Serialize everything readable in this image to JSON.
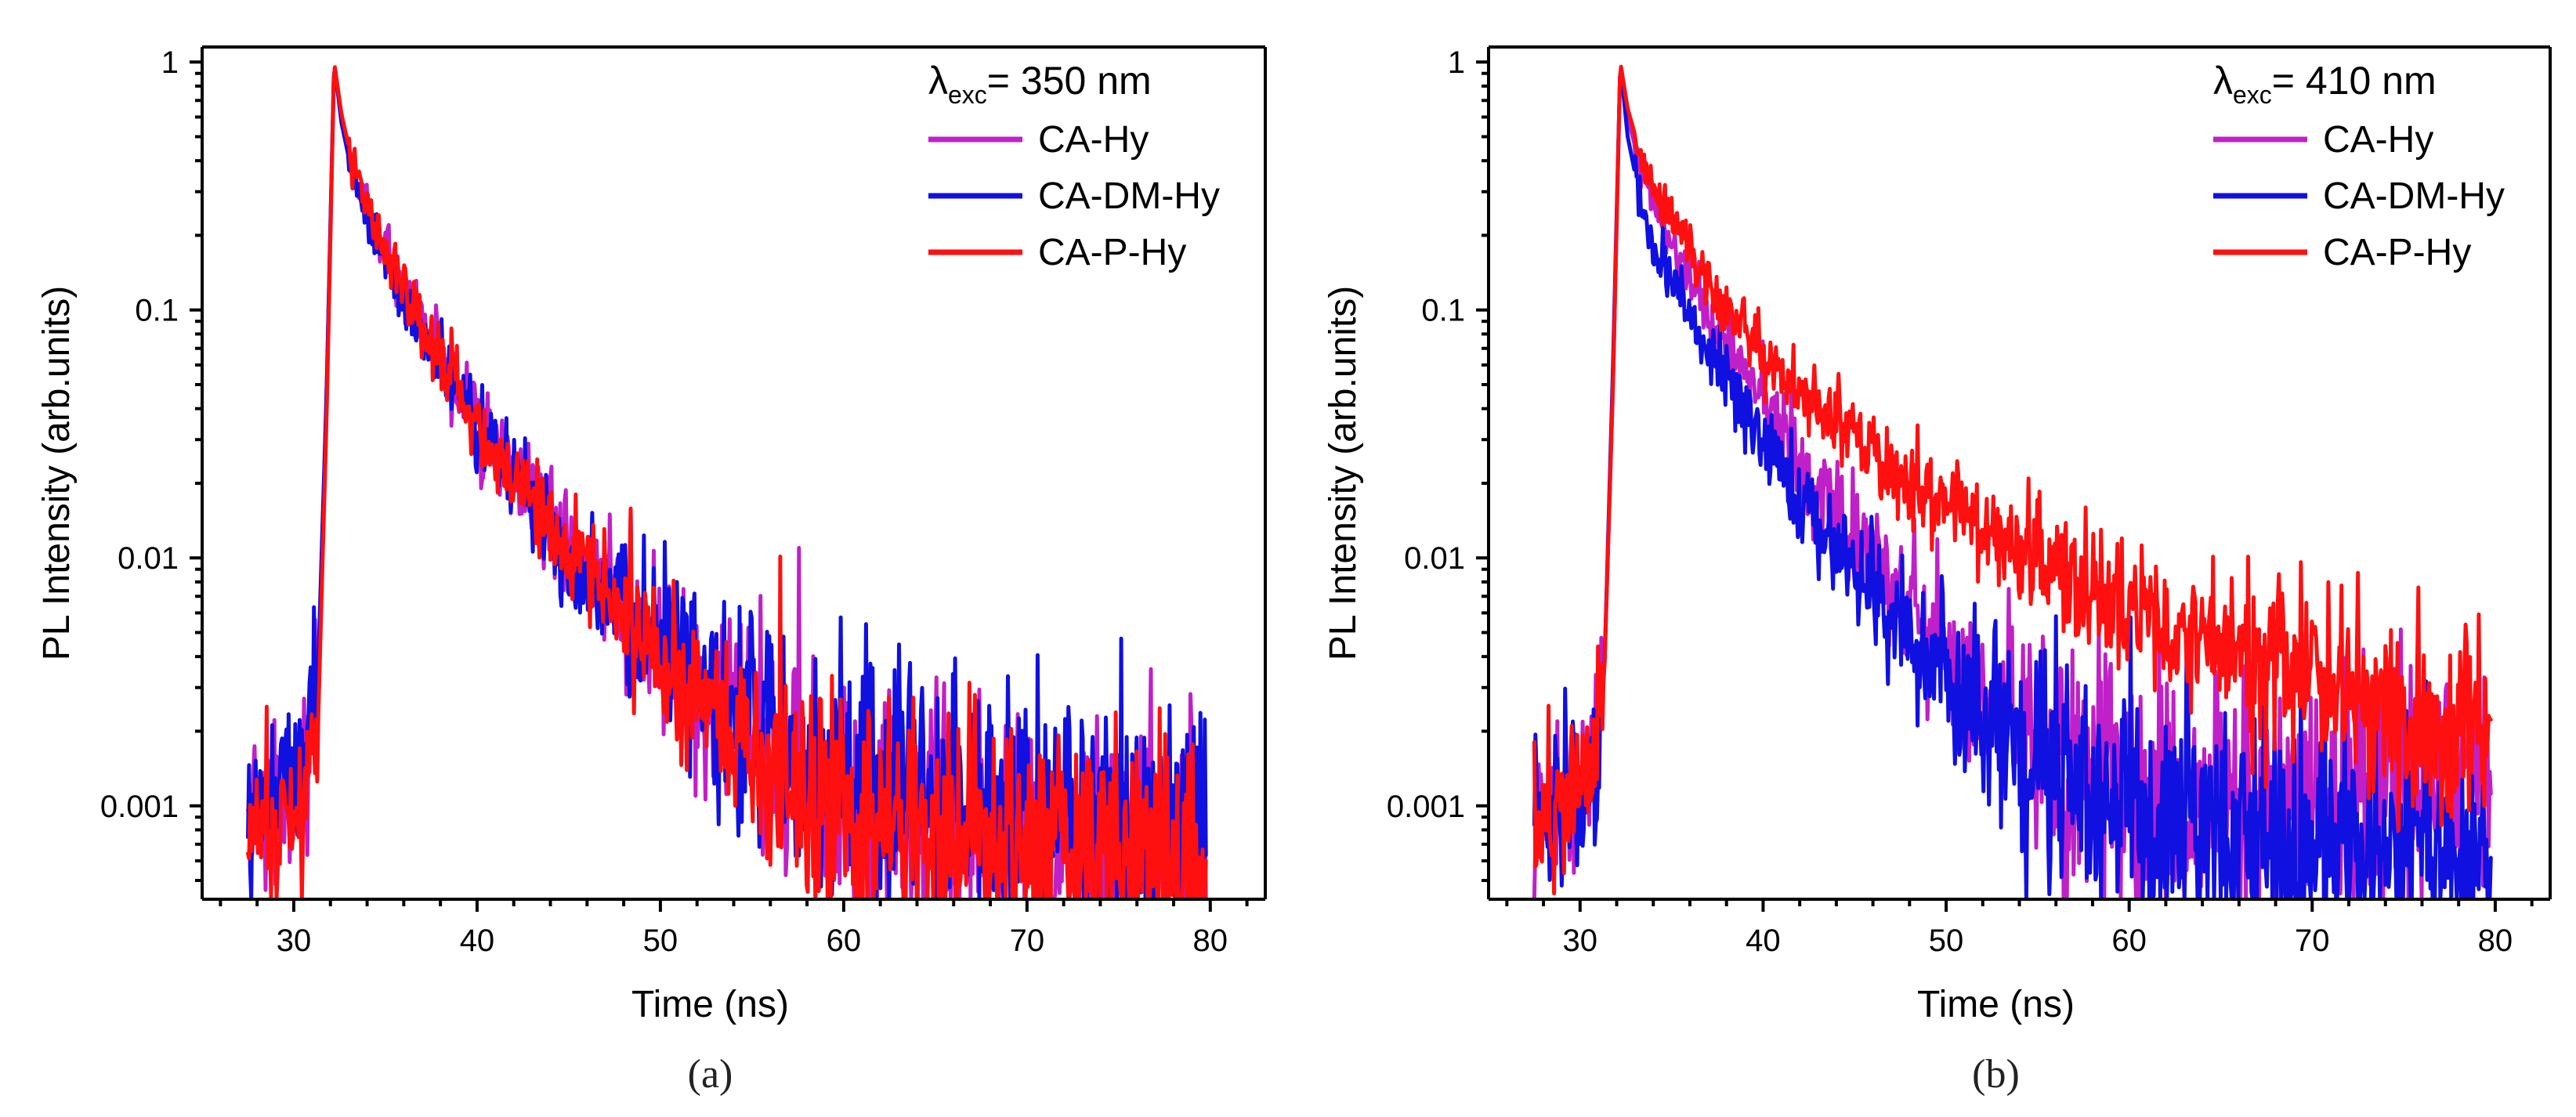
{
  "chart_data": [
    {
      "type": "line",
      "panel_label": "(a)",
      "xlabel": "Time (ns)",
      "ylabel": "PL Intensity (arb.units)",
      "xlim": [
        25,
        83
      ],
      "ylim": [
        0.00042,
        1.15
      ],
      "yscale": "log",
      "x_ticks": [
        30,
        40,
        50,
        60,
        70,
        80
      ],
      "x_tick_labels": [
        "30",
        "40",
        "50",
        "60",
        "70",
        "80"
      ],
      "y_ticks": [
        1,
        0.1,
        0.01,
        0.001
      ],
      "y_tick_labels": [
        "1",
        "0.1",
        "0.01",
        "0.001"
      ],
      "legend": {
        "header_symbol": "λ",
        "header_sub": "exc",
        "header_text": "= 350 nm",
        "placement": "top-right",
        "entries": [
          "CA-Hy",
          "CA-DM-Hy",
          "CA-P-Hy"
        ]
      },
      "series": [
        {
          "name": "CA-Hy",
          "color": "#c020c8",
          "x": [
            27.5,
            29,
            30.5,
            31.3,
            31.8,
            32.2,
            32.6,
            33.2,
            34,
            35,
            36,
            37,
            38,
            39,
            40,
            41,
            42,
            43,
            44,
            45,
            46,
            47,
            48,
            49,
            50,
            51,
            52,
            53,
            54,
            55,
            56,
            58,
            60,
            62,
            64,
            66,
            68,
            70,
            72,
            74,
            76,
            78,
            79.8
          ],
          "y": [
            0.0009,
            0.0009,
            0.0012,
            0.0025,
            0.05,
            1.0,
            0.6,
            0.38,
            0.26,
            0.17,
            0.115,
            0.085,
            0.062,
            0.047,
            0.036,
            0.028,
            0.022,
            0.0175,
            0.014,
            0.0112,
            0.009,
            0.0073,
            0.006,
            0.005,
            0.0042,
            0.0036,
            0.003,
            0.0025,
            0.0021,
            0.0018,
            0.0016,
            0.0013,
            0.0011,
            0.001,
            0.0009,
            0.00085,
            0.0008,
            0.0008,
            0.00078,
            0.00077,
            0.00076,
            0.00075,
            0.00075
          ]
        },
        {
          "name": "CA-DM-Hy",
          "color": "#1010e0",
          "x": [
            27.5,
            29,
            30.5,
            31.3,
            31.8,
            32.2,
            32.6,
            33.2,
            34,
            35,
            36,
            37,
            38,
            39,
            40,
            41,
            42,
            43,
            44,
            45,
            46,
            47,
            48,
            49,
            50,
            51,
            52,
            53,
            54,
            55,
            56,
            58,
            60,
            62,
            64,
            66,
            68,
            70,
            72,
            74,
            76,
            78,
            79.8
          ],
          "y": [
            0.001,
            0.0012,
            0.0018,
            0.003,
            0.05,
            1.0,
            0.57,
            0.35,
            0.24,
            0.16,
            0.108,
            0.078,
            0.058,
            0.044,
            0.034,
            0.027,
            0.021,
            0.017,
            0.0135,
            0.011,
            0.009,
            0.0075,
            0.0062,
            0.0052,
            0.0045,
            0.0039,
            0.0033,
            0.0028,
            0.0024,
            0.0021,
            0.0018,
            0.0015,
            0.0013,
            0.0012,
            0.0011,
            0.001,
            0.001,
            0.001,
            0.00095,
            0.0009,
            0.0009,
            0.0009,
            0.0009
          ]
        },
        {
          "name": "CA-P-Hy",
          "color": "#ff1010",
          "x": [
            27.5,
            29,
            30.5,
            31.3,
            31.8,
            32.2,
            32.6,
            33.2,
            34,
            35,
            36,
            37,
            38,
            39,
            40,
            41,
            42,
            43,
            44,
            45,
            46,
            47,
            48,
            49,
            50,
            51,
            52,
            53,
            54,
            55,
            56,
            58,
            60,
            62,
            64,
            66,
            68,
            70,
            72,
            74,
            76,
            78,
            79.8
          ],
          "y": [
            0.0008,
            0.0008,
            0.001,
            0.0018,
            0.04,
            1.0,
            0.62,
            0.39,
            0.27,
            0.175,
            0.118,
            0.086,
            0.063,
            0.047,
            0.036,
            0.028,
            0.022,
            0.0175,
            0.0138,
            0.011,
            0.0087,
            0.007,
            0.0057,
            0.0047,
            0.0039,
            0.0032,
            0.0027,
            0.0022,
            0.0019,
            0.0016,
            0.0014,
            0.0011,
            0.00095,
            0.00085,
            0.00078,
            0.00074,
            0.0007,
            0.00068,
            0.00066,
            0.00065,
            0.00064,
            0.00063,
            0.00062
          ]
        }
      ]
    },
    {
      "type": "line",
      "panel_label": "(b)",
      "xlabel": "Time (ns)",
      "ylabel": "PL Intensity (arb.units)",
      "xlim": [
        25,
        83
      ],
      "ylim": [
        0.00042,
        1.15
      ],
      "yscale": "log",
      "x_ticks": [
        30,
        40,
        50,
        60,
        70,
        80
      ],
      "x_tick_labels": [
        "30",
        "40",
        "50",
        "60",
        "70",
        "80"
      ],
      "y_ticks": [
        1,
        0.1,
        0.01,
        0.001
      ],
      "y_tick_labels": [
        "1",
        "0.1",
        "0.01",
        "0.001"
      ],
      "legend": {
        "header_symbol": "λ",
        "header_sub": "exc",
        "header_text": "= 410 nm",
        "placement": "top-right",
        "entries": [
          "CA-Hy",
          "CA-DM-Hy",
          "CA-P-Hy"
        ]
      },
      "series": [
        {
          "name": "CA-Hy",
          "color": "#c020c8",
          "x": [
            27.5,
            29,
            30.5,
            31.3,
            31.8,
            32.2,
            32.6,
            33.2,
            34,
            35,
            36,
            37,
            38,
            39,
            40,
            41,
            42,
            43,
            44,
            45,
            46,
            47,
            48,
            49,
            50,
            51,
            52,
            53,
            54,
            55,
            56,
            58,
            60,
            62,
            64,
            66,
            68,
            70,
            72,
            74,
            76,
            78,
            79.8
          ],
          "y": [
            0.0008,
            0.0009,
            0.0015,
            0.003,
            0.05,
            1.0,
            0.6,
            0.4,
            0.28,
            0.19,
            0.135,
            0.098,
            0.073,
            0.055,
            0.042,
            0.032,
            0.025,
            0.019,
            0.015,
            0.012,
            0.0095,
            0.0077,
            0.0062,
            0.005,
            0.0041,
            0.0034,
            0.0028,
            0.0024,
            0.002,
            0.0017,
            0.0015,
            0.0013,
            0.0012,
            0.0011,
            0.001,
            0.001,
            0.001,
            0.001,
            0.0011,
            0.0012,
            0.0013,
            0.0014,
            0.0015
          ]
        },
        {
          "name": "CA-DM-Hy",
          "color": "#1010e0",
          "x": [
            27.5,
            29,
            30.5,
            31.3,
            31.8,
            32.2,
            32.6,
            33.2,
            34,
            35,
            36,
            37,
            38,
            39,
            40,
            41,
            42,
            43,
            44,
            45,
            46,
            47,
            48,
            49,
            50,
            51,
            52,
            53,
            54,
            55,
            56,
            58,
            60,
            62,
            64,
            66,
            68,
            70,
            72,
            74,
            76,
            78,
            79.8
          ],
          "y": [
            0.001,
            0.0009,
            0.0012,
            0.003,
            0.06,
            1.0,
            0.5,
            0.3,
            0.2,
            0.135,
            0.095,
            0.07,
            0.052,
            0.039,
            0.03,
            0.023,
            0.018,
            0.014,
            0.011,
            0.0088,
            0.007,
            0.0057,
            0.0047,
            0.0039,
            0.0033,
            0.0028,
            0.0024,
            0.0021,
            0.0018,
            0.0016,
            0.0014,
            0.0012,
            0.001,
            0.0009,
            0.00085,
            0.0008,
            0.00078,
            0.00075,
            0.00072,
            0.0007,
            0.00068,
            0.00066,
            0.00065
          ]
        },
        {
          "name": "CA-P-Hy",
          "color": "#ff1010",
          "x": [
            27.5,
            29,
            30.5,
            31.3,
            31.8,
            32.2,
            32.6,
            33.2,
            34,
            35,
            36,
            37,
            38,
            39,
            40,
            41,
            42,
            43,
            44,
            45,
            46,
            47,
            48,
            49,
            50,
            51,
            52,
            53,
            54,
            55,
            56,
            58,
            60,
            62,
            64,
            66,
            68,
            70,
            72,
            74,
            76,
            78,
            79.8
          ],
          "y": [
            0.0009,
            0.001,
            0.0015,
            0.003,
            0.05,
            1.0,
            0.65,
            0.45,
            0.32,
            0.23,
            0.17,
            0.13,
            0.1,
            0.082,
            0.068,
            0.057,
            0.048,
            0.041,
            0.035,
            0.03,
            0.026,
            0.023,
            0.02,
            0.018,
            0.016,
            0.0145,
            0.013,
            0.0118,
            0.0107,
            0.0097,
            0.0088,
            0.0074,
            0.0063,
            0.0054,
            0.0047,
            0.0041,
            0.0036,
            0.0032,
            0.0028,
            0.0025,
            0.0023,
            0.0021,
            0.002
          ]
        }
      ]
    }
  ]
}
